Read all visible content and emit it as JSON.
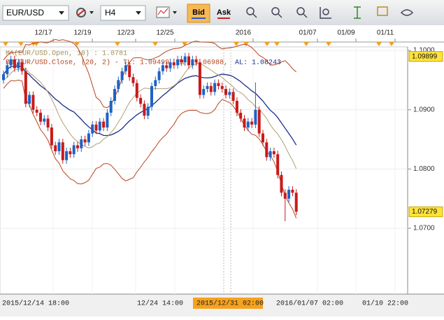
{
  "toolbar": {
    "symbol": "EUR/USD",
    "timeframe": "H4",
    "bid": "Bid",
    "ask": "Ask"
  },
  "chart": {
    "indicators": {
      "ma": "MA(EUR/USD.Open, 10) : 1.0781",
      "bb": "BB(EUR/USD.Close, (20, 2) - TL: 1.09499, BL: 1.06988,",
      "al": "AL: 1.08243"
    },
    "top_dates": [
      "12/17",
      "12/19",
      "12/23",
      "12/25",
      "2016",
      "01/07",
      "01/09",
      "01/11"
    ],
    "bottom_dates": [
      "2015/12/14 18:00",
      "12/24 14:00",
      "2015/12/31 02:00",
      "2016/01/07 02:00",
      "01/10 22:00"
    ],
    "ylim": [
      1.0589,
      1.1006
    ],
    "yticks": [
      {
        "value": 1.1,
        "label": "1.1000"
      },
      {
        "value": 1.09,
        "label": "1.0900"
      },
      {
        "value": 1.08,
        "label": "1.0800"
      },
      {
        "value": 1.07,
        "label": "1.0700"
      }
    ],
    "price_markers": [
      1.09899,
      1.07279
    ],
    "up_color": "#1f62c4",
    "down_color": "#c81a1a",
    "candles": [
      [
        1.095,
        1.0966,
        1.0944,
        1.096
      ],
      [
        1.096,
        1.0981,
        1.0954,
        1.0975
      ],
      [
        1.0975,
        1.0991,
        1.0969,
        1.0985
      ],
      [
        1.0985,
        1.0991,
        1.0964,
        1.097
      ],
      [
        1.097,
        1.0986,
        1.0964,
        1.098
      ],
      [
        1.098,
        1.0986,
        1.0959,
        1.0965
      ],
      [
        1.0965,
        1.0971,
        1.0904,
        1.091
      ],
      [
        1.091,
        1.0931,
        1.0904,
        1.0925
      ],
      [
        1.0925,
        1.0931,
        1.0894,
        1.09
      ],
      [
        1.09,
        1.0906,
        1.0889,
        1.0895
      ],
      [
        1.0895,
        1.0901,
        1.0874,
        1.088
      ],
      [
        1.088,
        1.0891,
        1.0874,
        1.0885
      ],
      [
        1.0885,
        1.0891,
        1.0864,
        1.087
      ],
      [
        1.087,
        1.0876,
        1.0834,
        1.084
      ],
      [
        1.084,
        1.0846,
        1.0824,
        1.083
      ],
      [
        1.083,
        1.0851,
        1.0824,
        1.0845
      ],
      [
        1.0845,
        1.0851,
        1.0809,
        1.0815
      ],
      [
        1.0815,
        1.0836,
        1.0809,
        1.083
      ],
      [
        1.083,
        1.0836,
        1.0819,
        1.0825
      ],
      [
        1.0825,
        1.0846,
        1.0819,
        1.084
      ],
      [
        1.084,
        1.0846,
        1.0829,
        1.0835
      ],
      [
        1.0835,
        1.0856,
        1.0829,
        1.085
      ],
      [
        1.085,
        1.0856,
        1.0839,
        1.0845
      ],
      [
        1.0845,
        1.0866,
        1.0839,
        1.086
      ],
      [
        1.086,
        1.0881,
        1.0854,
        1.0875
      ],
      [
        1.0875,
        1.0881,
        1.0859,
        1.0865
      ],
      [
        1.0865,
        1.0886,
        1.0859,
        1.088
      ],
      [
        1.088,
        1.0886,
        1.0864,
        1.087
      ],
      [
        1.087,
        1.0901,
        1.0864,
        1.0895
      ],
      [
        1.0895,
        1.0921,
        1.0889,
        1.0915
      ],
      [
        1.0915,
        1.0941,
        1.0909,
        1.0935
      ],
      [
        1.0935,
        1.0956,
        1.0929,
        1.095
      ],
      [
        1.095,
        1.0971,
        1.0944,
        1.0965
      ],
      [
        1.0965,
        1.0981,
        1.0959,
        1.0975
      ],
      [
        1.0975,
        1.0981,
        1.0949,
        1.0955
      ],
      [
        1.0955,
        1.0961,
        1.0939,
        1.0945
      ],
      [
        1.0945,
        1.0951,
        1.0914,
        1.092
      ],
      [
        1.092,
        1.0926,
        1.0904,
        1.091
      ],
      [
        1.091,
        1.0916,
        1.0884,
        1.089
      ],
      [
        1.089,
        1.0911,
        1.0884,
        1.0905
      ],
      [
        1.0905,
        1.0946,
        1.0899,
        1.094
      ],
      [
        1.094,
        1.0956,
        1.0934,
        1.095
      ],
      [
        1.095,
        1.0971,
        1.0944,
        1.0965
      ],
      [
        1.0965,
        1.0981,
        1.0959,
        1.0975
      ],
      [
        1.0975,
        1.0981,
        1.0964,
        1.097
      ],
      [
        1.097,
        1.0986,
        1.0964,
        1.098
      ],
      [
        1.098,
        1.0986,
        1.0969,
        1.0975
      ],
      [
        1.0975,
        1.0991,
        1.0969,
        1.0985
      ],
      [
        1.0985,
        1.0991,
        1.0974,
        1.098
      ],
      [
        1.098,
        1.0996,
        1.0974,
        1.099
      ],
      [
        1.099,
        1.0996,
        1.0969,
        1.0975
      ],
      [
        1.0975,
        1.0991,
        1.0969,
        1.0985
      ],
      [
        1.0985,
        1.0991,
        1.0974,
        1.098
      ],
      [
        1.098,
        1.0986,
        1.0919,
        1.0925
      ],
      [
        1.0925,
        1.0941,
        1.0919,
        1.0935
      ],
      [
        1.0935,
        1.0946,
        1.0929,
        1.094
      ],
      [
        1.094,
        1.0946,
        1.0924,
        1.093
      ],
      [
        1.093,
        1.0951,
        1.0924,
        1.0945
      ],
      [
        1.0945,
        1.0951,
        1.0934,
        1.094
      ],
      [
        1.094,
        1.0946,
        1.0929,
        1.0935
      ],
      [
        1.0935,
        1.0941,
        1.0919,
        1.0925
      ],
      [
        1.0925,
        1.0936,
        1.0919,
        1.093
      ],
      [
        1.093,
        1.0936,
        1.0909,
        1.0915
      ],
      [
        1.0915,
        1.0921,
        1.0889,
        1.0895
      ],
      [
        1.0895,
        1.0901,
        1.0879,
        1.0885
      ],
      [
        1.0885,
        1.0891,
        1.0864,
        1.087
      ],
      [
        1.087,
        1.0886,
        1.0864,
        1.088
      ],
      [
        1.088,
        1.0886,
        1.0869,
        1.0875
      ],
      [
        1.0875,
        1.0946,
        1.0869,
        1.09
      ],
      [
        1.09,
        1.0906,
        1.0854,
        1.086
      ],
      [
        1.086,
        1.0866,
        1.0839,
        1.0845
      ],
      [
        1.0845,
        1.0851,
        1.0814,
        1.082
      ],
      [
        1.082,
        1.0836,
        1.0814,
        1.083
      ],
      [
        1.083,
        1.0836,
        1.0819,
        1.0825
      ],
      [
        1.0825,
        1.0831,
        1.0784,
        1.079
      ],
      [
        1.079,
        1.0796,
        1.0754,
        1.076
      ],
      [
        1.076,
        1.0766,
        1.0712,
        1.075
      ],
      [
        1.075,
        1.0771,
        1.0744,
        1.0765
      ],
      [
        1.0765,
        1.0771,
        1.0754,
        1.076
      ],
      [
        1.076,
        1.0766,
        1.0722,
        1.0728
      ]
    ]
  }
}
